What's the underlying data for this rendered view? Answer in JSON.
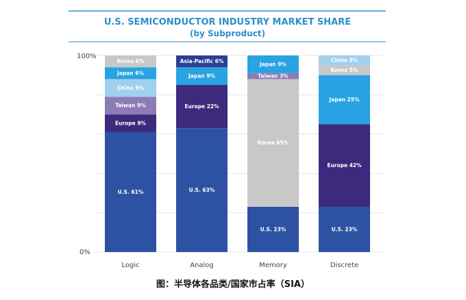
{
  "chart_data": {
    "type": "bar",
    "stacked": true,
    "percent": true,
    "title": "U.S. SEMICONDUCTOR INDUSTRY MARKET SHARE",
    "subtitle": "(by Subproduct)",
    "ylim": [
      0,
      100
    ],
    "yticks": [
      "0%",
      "100%"
    ],
    "categories": [
      "Logic",
      "Analog",
      "Memory",
      "Discrete"
    ],
    "bars": [
      {
        "category": "Logic",
        "segments": [
          {
            "name": "U.S.",
            "value": 61,
            "label": "U.S. 61%",
            "color": "#2e52a3"
          },
          {
            "name": "Europe",
            "value": 9,
            "label": "Europe 9%",
            "color": "#3d2a7d"
          },
          {
            "name": "Taiwan",
            "value": 9,
            "label": "Taiwan 9%",
            "color": "#8c7bb5"
          },
          {
            "name": "China",
            "value": 9,
            "label": "China 9%",
            "color": "#9fd0ef"
          },
          {
            "name": "Japan",
            "value": 6,
            "label": "Japan 6%",
            "color": "#29a3e1"
          },
          {
            "name": "Korea",
            "value": 6,
            "label": "Korea 6%",
            "color": "#c8c8c8"
          }
        ]
      },
      {
        "category": "Analog",
        "segments": [
          {
            "name": "U.S.",
            "value": 63,
            "label": "U.S. 63%",
            "color": "#2e52a3"
          },
          {
            "name": "Europe",
            "value": 22,
            "label": "Europe 22%",
            "color": "#3d2a7d"
          },
          {
            "name": "Japan",
            "value": 9,
            "label": "Japan 9%",
            "color": "#29a3e1"
          },
          {
            "name": "Asia-Pacific",
            "value": 6,
            "label": "Asia-Pacific 6%",
            "color": "#2c3e96"
          }
        ]
      },
      {
        "category": "Memory",
        "segments": [
          {
            "name": "U.S.",
            "value": 23,
            "label": "U.S. 23%",
            "color": "#2e52a3"
          },
          {
            "name": "Korea",
            "value": 65,
            "label": "Korea 65%",
            "color": "#c8c8c8"
          },
          {
            "name": "Taiwan",
            "value": 3,
            "label": "Taiwan 3%",
            "color": "#8c7bb5"
          },
          {
            "name": "Japan",
            "value": 9,
            "label": "Japan 9%",
            "color": "#29a3e1"
          }
        ]
      },
      {
        "category": "Discrete",
        "segments": [
          {
            "name": "U.S.",
            "value": 23,
            "label": "U.S. 23%",
            "color": "#2e52a3"
          },
          {
            "name": "Europe",
            "value": 42,
            "label": "Europe 42%",
            "color": "#3d2a7d"
          },
          {
            "name": "Japan",
            "value": 25,
            "label": "Japan 25%",
            "color": "#29a3e1"
          },
          {
            "name": "Korea",
            "value": 5,
            "label": "Korea 5%",
            "color": "#c8c8c8"
          },
          {
            "name": "China",
            "value": 5,
            "label": "China 5%",
            "color": "#9fd0ef"
          }
        ]
      }
    ],
    "colors": {
      "title": "#2b8fc9",
      "rule": "#2b8fc9",
      "grid": "#e4e4e4",
      "axis_text": "#444444"
    }
  },
  "caption": "图：半导体各品类/国家市占率（SIA）"
}
